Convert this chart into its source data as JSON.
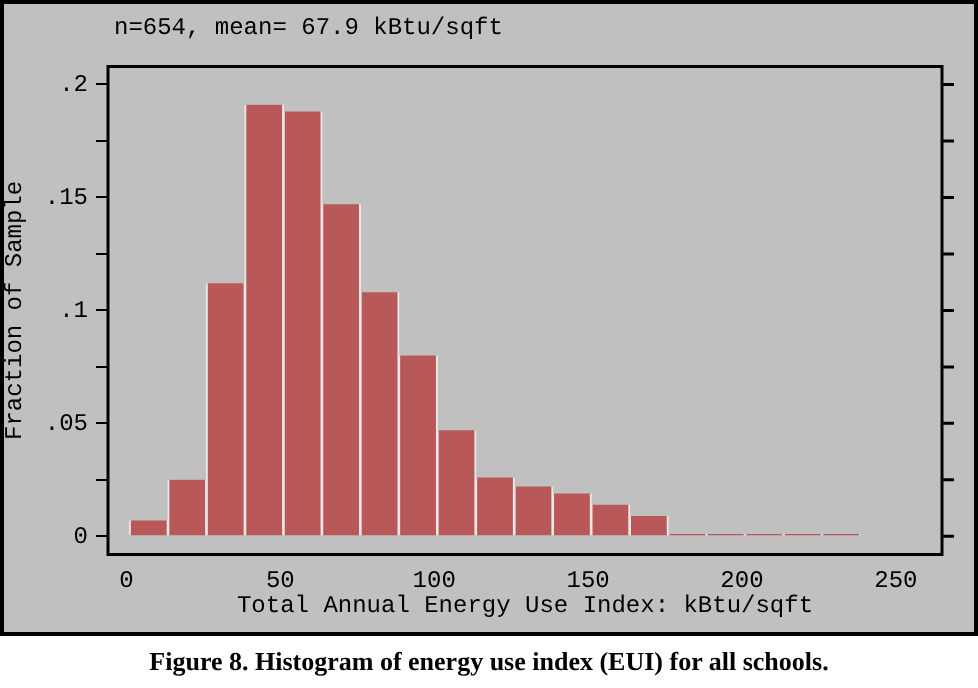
{
  "chart_data": {
    "type": "histogram",
    "title": "n=654, mean= 67.9 kBtu/sqft",
    "xlabel": "Total Annual Energy Use Index: kBtu/sqft",
    "ylabel": "Fraction of Sample",
    "bins": [
      1,
      13.5,
      26,
      38.5,
      51,
      63.5,
      76,
      88.5,
      101,
      113.5,
      126,
      138.5,
      151,
      163.5,
      176,
      188.5,
      201,
      213.5,
      226,
      238.5
    ],
    "values": [
      0.007,
      0.025,
      0.112,
      0.191,
      0.188,
      0.147,
      0.108,
      0.08,
      0.047,
      0.026,
      0.022,
      0.019,
      0.014,
      0.009,
      0.001,
      0.001,
      0.001,
      0.001,
      0.001
    ],
    "color": "#b85858",
    "xlim": [
      -6,
      265
    ],
    "xticks": [
      0,
      50,
      100,
      150,
      200,
      250
    ],
    "ylim": [
      -0.008,
      0.208
    ],
    "yticks": [
      {
        "value": 0,
        "label": "0"
      },
      {
        "value": 0.025,
        "label": null
      },
      {
        "value": 0.05,
        "label": ".05"
      },
      {
        "value": 0.075,
        "label": null
      },
      {
        "value": 0.1,
        "label": ".1"
      },
      {
        "value": 0.125,
        "label": null
      },
      {
        "value": 0.15,
        "label": ".15"
      },
      {
        "value": 0.175,
        "label": null
      },
      {
        "value": 0.2,
        "label": ".2"
      }
    ],
    "grid": false,
    "legend": false,
    "annotations": [
      "Figure 8. Histogram of energy use index (EUI) for all schools."
    ]
  }
}
